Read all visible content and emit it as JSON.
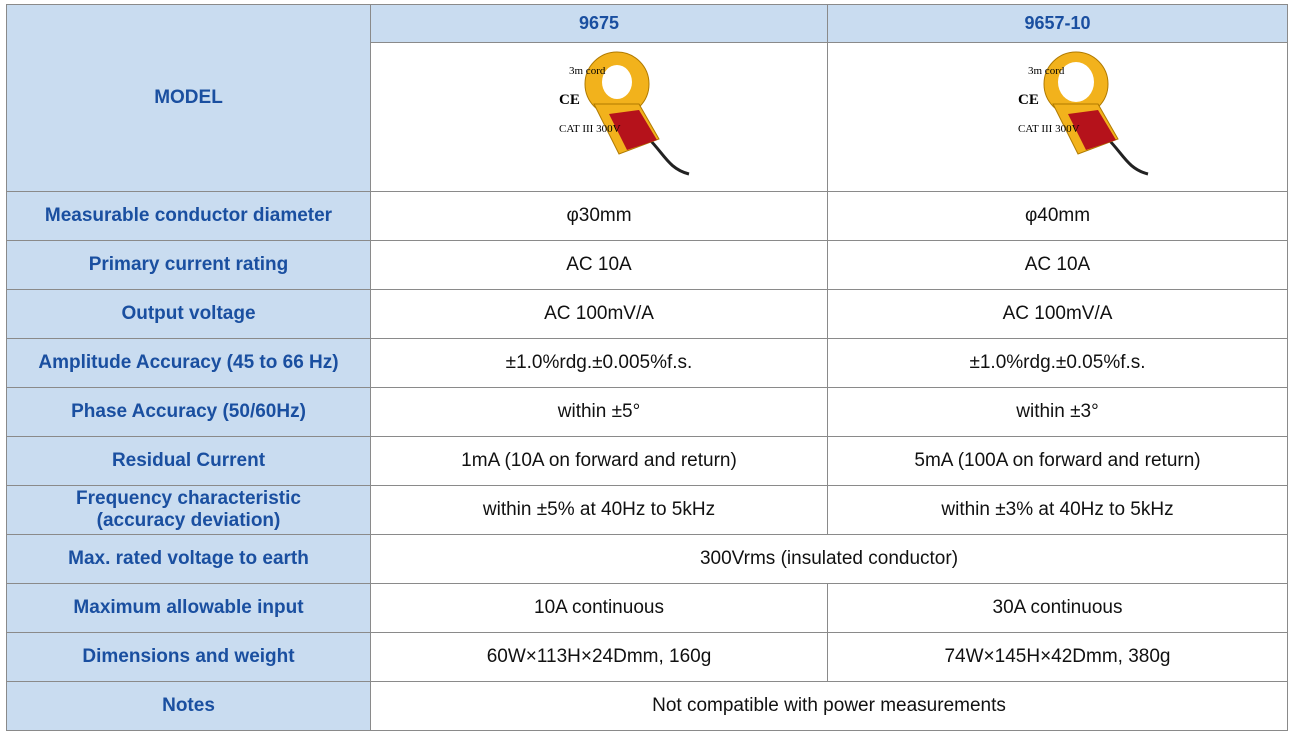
{
  "table": {
    "header": [
      "MODEL",
      "9675",
      "9657-10"
    ],
    "images": [
      {
        "cord": "3m cord",
        "mark": "CE",
        "rating": "CAT III 300V"
      },
      {
        "cord": "3m cord",
        "mark": "CE",
        "rating": "CAT III 300V"
      }
    ],
    "rows": [
      [
        "Measurable conductor diameter",
        "φ30mm",
        "φ40mm"
      ],
      [
        "Primary current rating",
        "AC 10A",
        "AC 10A"
      ],
      [
        "Output voltage",
        "AC 100mV/A",
        "AC 100mV/A"
      ],
      [
        "Amplitude Accuracy (45 to 66 Hz)",
        "±1.0%rdg.±0.005%f.s.",
        "±1.0%rdg.±0.05%f.s."
      ],
      [
        "Phase Accuracy (50/60Hz)",
        "within ±5°",
        "within ±3°"
      ],
      [
        "Residual Current",
        "1mA (10A on forward and return)",
        "5mA (100A on forward and return)"
      ],
      [
        "Frequency characteristic (accuracy deviation)",
        "within ±5% at 40Hz to 5kHz",
        "within ±3% at 40Hz to 5kHz"
      ],
      [
        "Max. rated voltage to earth",
        "300Vrms (insulated conductor)"
      ],
      [
        "Maximum allowable input",
        "10A continuous",
        "30A continuous"
      ],
      [
        "Dimensions and weight",
        "60W×113H×24Dmm, 160g",
        "74W×145H×42Dmm, 380g"
      ],
      [
        "Notes",
        "Not compatible with power measurements"
      ]
    ]
  }
}
